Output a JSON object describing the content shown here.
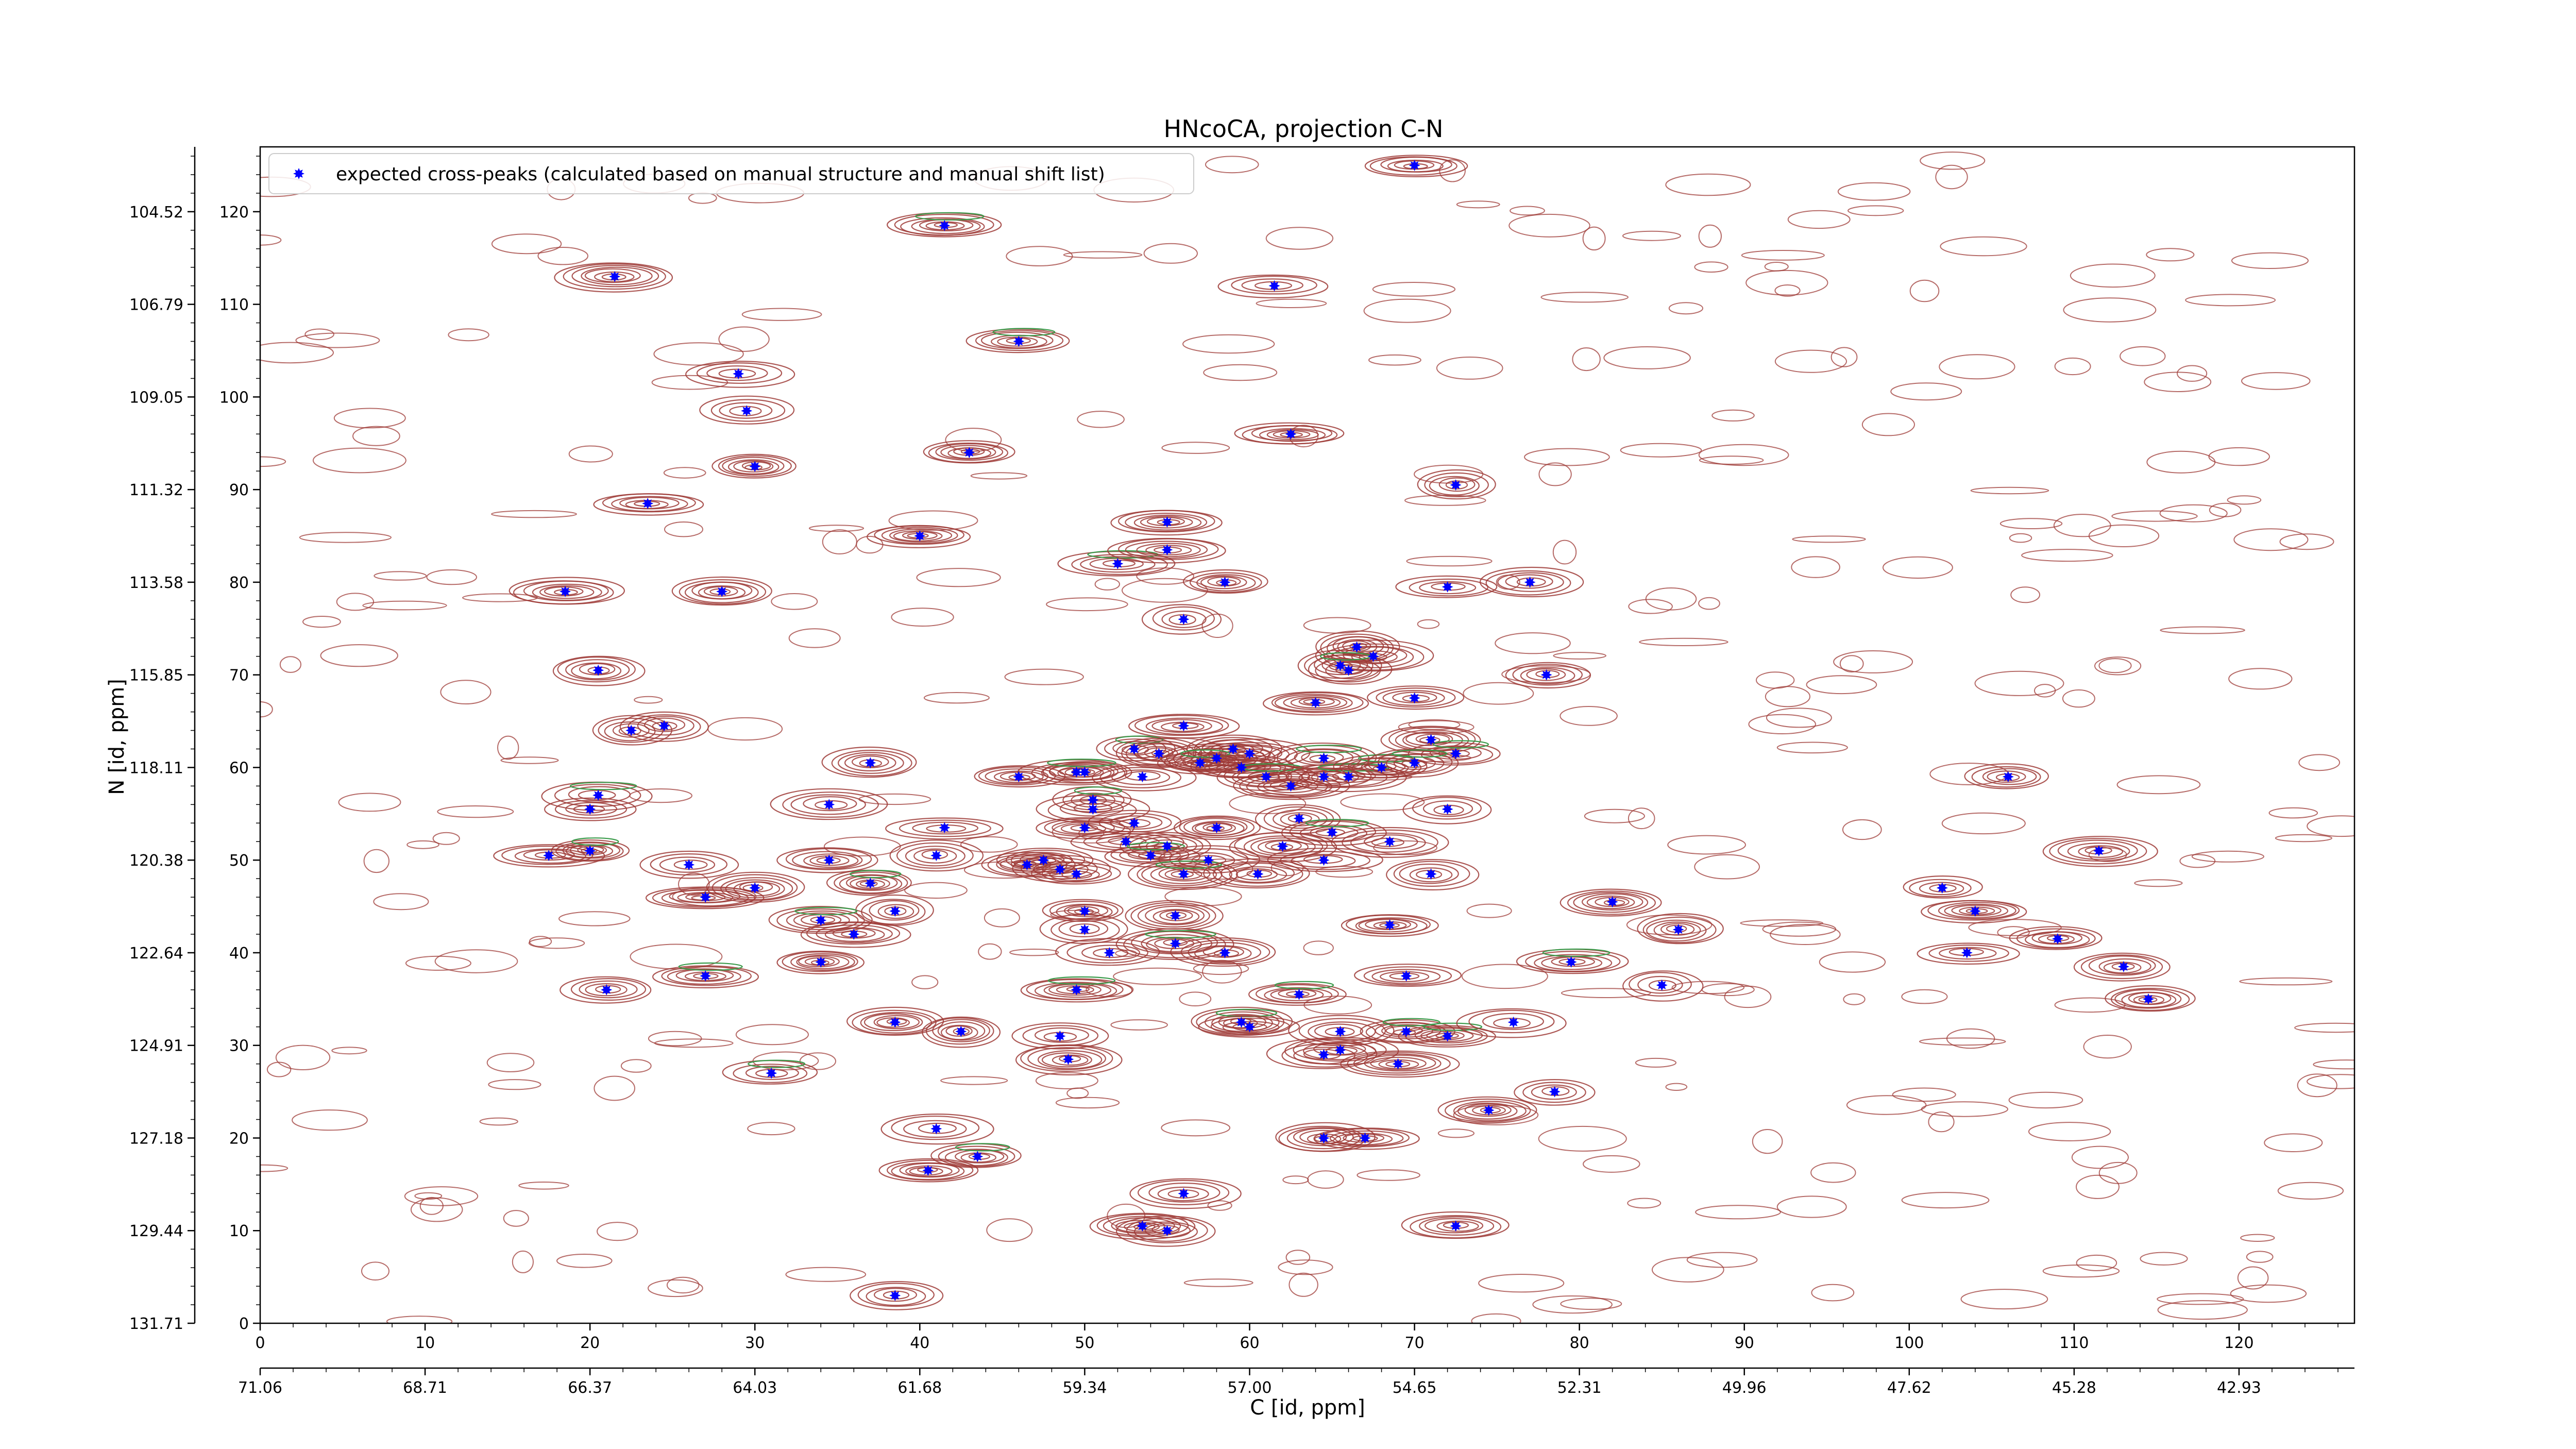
{
  "chart_data": {
    "type": "scatter",
    "title": "HNcoCA, projection C-N",
    "xlabel": "C [id, ppm]",
    "ylabel": "N [id, ppm]",
    "xlim": [
      0,
      127
    ],
    "ylim": [
      0,
      127
    ],
    "x_index_ticks": [
      "0",
      "10",
      "20",
      "30",
      "40",
      "50",
      "60",
      "70",
      "80",
      "90",
      "100",
      "110",
      "120"
    ],
    "x_ppm_ticks": [
      "71.06",
      "68.71",
      "66.37",
      "64.03",
      "61.68",
      "59.34",
      "57.00",
      "54.65",
      "52.31",
      "49.96",
      "47.62",
      "45.28",
      "42.93"
    ],
    "y_index_ticks": [
      "0",
      "10",
      "20",
      "30",
      "40",
      "50",
      "60",
      "70",
      "80",
      "90",
      "100",
      "110",
      "120"
    ],
    "y_ppm_ticks": [
      "131.71",
      "129.44",
      "127.18",
      "124.91",
      "122.64",
      "120.38",
      "118.11",
      "115.85",
      "113.58",
      "111.32",
      "109.05",
      "106.79",
      "104.52"
    ],
    "legend": {
      "placement": "top-left",
      "label": "expected cross-peaks (calculated based on manual structure and manual shift list)"
    },
    "colors": {
      "marker": "#0000ff",
      "contour_positive": "#9e3a36",
      "contour_negative": "#3a9a4a"
    },
    "series": [
      {
        "name": "expected cross-peaks (calculated based on manual structure and manual shift list)",
        "points": [
          [
            70,
            125
          ],
          [
            41.5,
            118.5
          ],
          [
            21.5,
            113
          ],
          [
            61.5,
            112
          ],
          [
            46,
            106
          ],
          [
            29,
            102.5
          ],
          [
            29.5,
            98.5
          ],
          [
            62.5,
            96
          ],
          [
            30,
            92.5
          ],
          [
            43,
            94
          ],
          [
            72.5,
            90.5
          ],
          [
            23.5,
            88.5
          ],
          [
            40,
            85
          ],
          [
            55,
            86.5
          ],
          [
            52,
            82
          ],
          [
            55,
            83.5
          ],
          [
            58.5,
            80
          ],
          [
            77,
            80
          ],
          [
            72,
            79.5
          ],
          [
            18.5,
            79
          ],
          [
            28,
            79
          ],
          [
            56,
            76
          ],
          [
            66.5,
            73
          ],
          [
            67.5,
            72
          ],
          [
            66,
            70.5
          ],
          [
            65.5,
            71
          ],
          [
            78,
            70
          ],
          [
            20.5,
            70.5
          ],
          [
            64,
            67
          ],
          [
            70,
            67.5
          ],
          [
            22.5,
            64
          ],
          [
            24.5,
            64.5
          ],
          [
            56,
            64.5
          ],
          [
            71,
            63
          ],
          [
            53,
            62
          ],
          [
            54.5,
            61.5
          ],
          [
            58,
            61
          ],
          [
            59,
            62
          ],
          [
            60,
            61.5
          ],
          [
            64.5,
            61
          ],
          [
            72.5,
            61.5
          ],
          [
            50,
            59.5
          ],
          [
            49.5,
            59.5
          ],
          [
            53.5,
            59
          ],
          [
            57,
            60.5
          ],
          [
            59.5,
            60
          ],
          [
            61,
            59
          ],
          [
            62.5,
            58
          ],
          [
            64.5,
            59
          ],
          [
            66,
            59
          ],
          [
            68,
            60
          ],
          [
            70,
            60.5
          ],
          [
            46,
            59
          ],
          [
            37,
            60.5
          ],
          [
            20.5,
            57
          ],
          [
            20,
            55.5
          ],
          [
            34.5,
            56
          ],
          [
            50.5,
            56.5
          ],
          [
            72,
            55.5
          ],
          [
            50.5,
            55.5
          ],
          [
            53,
            54
          ],
          [
            58,
            53.5
          ],
          [
            63,
            54.5
          ],
          [
            65,
            53
          ],
          [
            41.5,
            53.5
          ],
          [
            50,
            53.5
          ],
          [
            52.5,
            52
          ],
          [
            55,
            51.5
          ],
          [
            62,
            51.5
          ],
          [
            64.5,
            50
          ],
          [
            68.5,
            52
          ],
          [
            17.5,
            50.5
          ],
          [
            20,
            51
          ],
          [
            41,
            50.5
          ],
          [
            26,
            49.5
          ],
          [
            34.5,
            50
          ],
          [
            46.5,
            49.5
          ],
          [
            47.5,
            50
          ],
          [
            48.5,
            49
          ],
          [
            49.5,
            48.5
          ],
          [
            54,
            50.5
          ],
          [
            57.5,
            50
          ],
          [
            56,
            48.5
          ],
          [
            60.5,
            48.5
          ],
          [
            71,
            48.5
          ],
          [
            37,
            47.5
          ],
          [
            30,
            47
          ],
          [
            27,
            46
          ],
          [
            102,
            47
          ],
          [
            82,
            45.5
          ],
          [
            38.5,
            44.5
          ],
          [
            50,
            44.5
          ],
          [
            55.5,
            44
          ],
          [
            34,
            43.5
          ],
          [
            68.5,
            43
          ],
          [
            86,
            42.5
          ],
          [
            104,
            44.5
          ],
          [
            50,
            42.5
          ],
          [
            36,
            42
          ],
          [
            51.5,
            40
          ],
          [
            55.5,
            41
          ],
          [
            58.5,
            40
          ],
          [
            79.5,
            39
          ],
          [
            34,
            39
          ],
          [
            103.5,
            40
          ],
          [
            109,
            41.5
          ],
          [
            113,
            38.5
          ],
          [
            111.5,
            51
          ],
          [
            106,
            59
          ],
          [
            27,
            37.5
          ],
          [
            21,
            36
          ],
          [
            49.5,
            36
          ],
          [
            63,
            35.5
          ],
          [
            69.5,
            37.5
          ],
          [
            85,
            36.5
          ],
          [
            114.5,
            35
          ],
          [
            38.5,
            32.5
          ],
          [
            42.5,
            31.5
          ],
          [
            48.5,
            31
          ],
          [
            59.5,
            32.5
          ],
          [
            60,
            32
          ],
          [
            65.5,
            31.5
          ],
          [
            69.5,
            31.5
          ],
          [
            72,
            31
          ],
          [
            76,
            32.5
          ],
          [
            49,
            28.5
          ],
          [
            64.5,
            29
          ],
          [
            65.5,
            29.5
          ],
          [
            69,
            28
          ],
          [
            31,
            27
          ],
          [
            74.5,
            23
          ],
          [
            78.5,
            25
          ],
          [
            64.5,
            20
          ],
          [
            67,
            20
          ],
          [
            41,
            21
          ],
          [
            43.5,
            18
          ],
          [
            40.5,
            16.5
          ],
          [
            56,
            14
          ],
          [
            53.5,
            10.5
          ],
          [
            55,
            10
          ],
          [
            72.5,
            10.5
          ],
          [
            38.5,
            3
          ]
        ]
      }
    ]
  }
}
